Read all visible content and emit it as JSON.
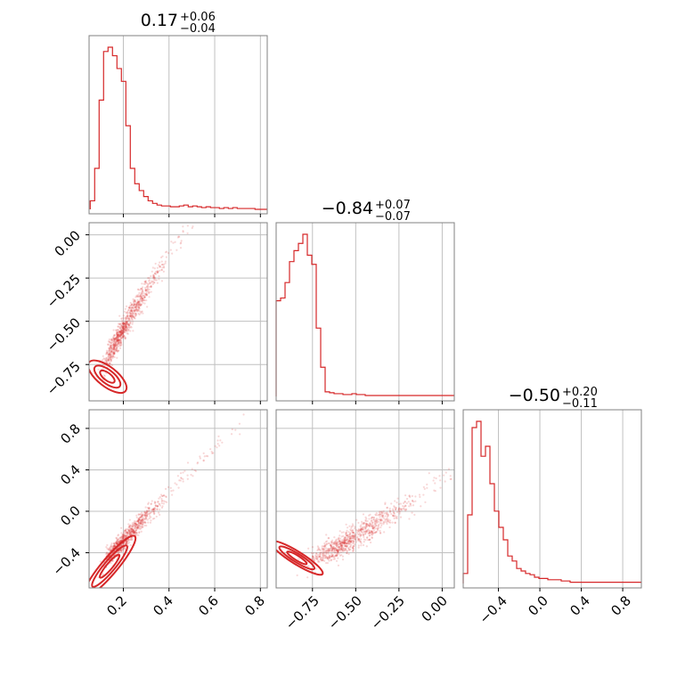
{
  "figure": {
    "colors": {
      "accent": "#d62728",
      "frame": "#808080",
      "grid": "#c0c0c0",
      "background": "#ffffff"
    }
  },
  "titles": [
    {
      "value": "0.17",
      "plus": "+0.06",
      "minus": "−0.04"
    },
    {
      "value": "−0.84",
      "plus": "+0.07",
      "minus": "−0.07"
    },
    {
      "value": "−0.50",
      "plus": "+0.20",
      "minus": "−0.11"
    }
  ],
  "axes": {
    "p0": {
      "range": [
        0.05,
        0.83
      ],
      "ticks": [
        0.2,
        0.4,
        0.6,
        0.8
      ],
      "labels": [
        "0.2",
        "0.4",
        "0.6",
        "0.8"
      ]
    },
    "p1": {
      "range": [
        -0.96,
        0.07
      ],
      "ticks": [
        -0.75,
        -0.5,
        -0.25,
        0.0
      ],
      "y_labels": [
        "−0.75",
        "−0.50",
        "−0.25",
        "0.00"
      ],
      "x_labels": [
        "−0.75",
        "−0.50",
        "−0.25",
        "0.00"
      ]
    },
    "p2": {
      "range": [
        -0.74,
        0.98
      ],
      "ticks": [
        -0.4,
        0.0,
        0.4,
        0.8
      ],
      "labels": [
        "−0.4",
        "0.0",
        "0.4",
        "0.8"
      ]
    }
  },
  "chart_data": [
    {
      "type": "histogram",
      "panel": "p0-marginal",
      "title": "0.17 +0.06 −0.04",
      "bin_start": 0.055,
      "bin_width": 0.0195,
      "counts": [
        10,
        48,
        128,
        185,
        190,
        180,
        165,
        150,
        98,
        48,
        30,
        22,
        15,
        10,
        7,
        5,
        4,
        4,
        3,
        3,
        4,
        5,
        3,
        4,
        3,
        2,
        3,
        2,
        2,
        1,
        2,
        1,
        2,
        1,
        1,
        1,
        1,
        0,
        0,
        0
      ],
      "grid": true
    },
    {
      "type": "scatter",
      "panel": "p0-vs-p1",
      "x_range": [
        0.05,
        0.83
      ],
      "y_range": [
        -0.96,
        0.07
      ],
      "density_center": [
        0.13,
        -0.82
      ],
      "contours": 3,
      "grid": true
    },
    {
      "type": "histogram",
      "panel": "p1-marginal",
      "title": "−0.84 +0.07 −0.07",
      "bin_start": -0.96,
      "bin_width": 0.02575,
      "counts": [
        105,
        108,
        125,
        148,
        160,
        168,
        178,
        155,
        145,
        75,
        32,
        5,
        4,
        3,
        3,
        2,
        2,
        3,
        2,
        2,
        1,
        1,
        1,
        1,
        1,
        1,
        1,
        1,
        1,
        1,
        1,
        1,
        1,
        1,
        1,
        1,
        1,
        1,
        1,
        1
      ],
      "grid": true
    },
    {
      "type": "scatter",
      "panel": "p0-vs-p2",
      "x_range": [
        0.05,
        0.83
      ],
      "y_range": [
        -0.74,
        0.98
      ],
      "density_center": [
        0.14,
        -0.53
      ],
      "contours": 3,
      "grid": true
    },
    {
      "type": "scatter",
      "panel": "p1-vs-p2",
      "x_range": [
        -0.96,
        0.07
      ],
      "y_range": [
        -0.74,
        0.98
      ],
      "density_center": [
        -0.84,
        -0.45
      ],
      "contours": 3,
      "grid": true
    },
    {
      "type": "histogram",
      "panel": "p2-marginal",
      "title": "−0.50 +0.20 −0.11",
      "bin_start": -0.74,
      "bin_width": 0.043,
      "counts": [
        8,
        55,
        125,
        130,
        102,
        110,
        80,
        58,
        45,
        35,
        22,
        18,
        12,
        10,
        8,
        7,
        5,
        4,
        4,
        3,
        3,
        3,
        2,
        2,
        1,
        1,
        1,
        1,
        1,
        1,
        1,
        1,
        1,
        1,
        1,
        1,
        1,
        1,
        1,
        1
      ],
      "grid": true
    }
  ]
}
